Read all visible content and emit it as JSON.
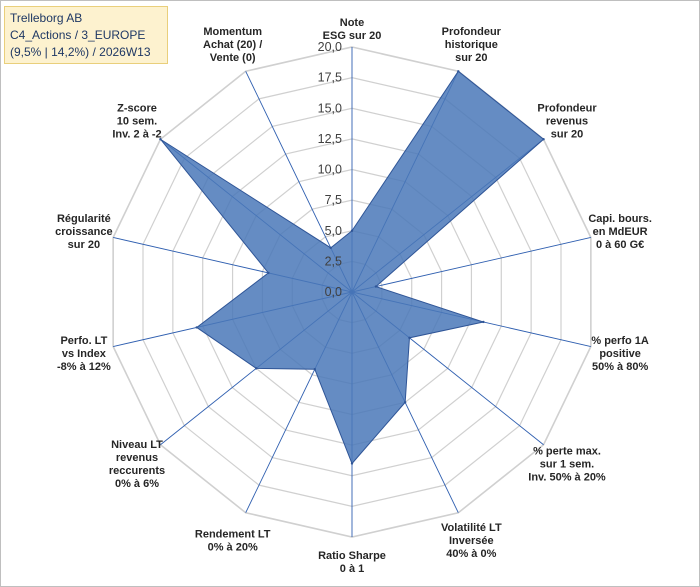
{
  "header": {
    "line1": "Trelleborg AB",
    "line2": "C4_Actions / 3_EUROPE",
    "line3": "(9,5% | 14,2%) / 2026W13"
  },
  "chart_data": {
    "type": "radar",
    "rmin": 0,
    "rmax": 20,
    "step": 2.5,
    "tick_labels": [
      "0,0",
      "2,5",
      "5,0",
      "7,5",
      "10,0",
      "12,5",
      "15,0",
      "17,5",
      "20,0"
    ],
    "grid": true,
    "fill_color": "#4a78b8",
    "line_color": "#2f5597",
    "axes": [
      {
        "label": [
          "Note",
          "ESG sur 20"
        ],
        "value": 5
      },
      {
        "label": [
          "Profondeur",
          "historique",
          "sur 20"
        ],
        "value": 20
      },
      {
        "label": [
          "Profondeur",
          "revenus",
          "sur 20"
        ],
        "value": 20
      },
      {
        "label": [
          "Capi. bours.",
          "en MdEUR",
          "0 à 60 G€"
        ],
        "value": 2
      },
      {
        "label": [
          "% perfo 1A",
          "positive",
          "50% à 80%"
        ],
        "value": 11
      },
      {
        "label": [
          "% perte max.",
          "sur 1 sem.",
          "Inv. 50% à 20%"
        ],
        "value": 6
      },
      {
        "label": [
          "Volatilité LT",
          "Inversée",
          "40% à 0%"
        ],
        "value": 10
      },
      {
        "label": [
          "Ratio Sharpe",
          "0 à 1"
        ],
        "value": 14
      },
      {
        "label": [
          "Rendement LT",
          "0% à 20%"
        ],
        "value": 7
      },
      {
        "label": [
          "Niveau LT",
          "revenus",
          "reccurents",
          "0% à 6%"
        ],
        "value": 10
      },
      {
        "label": [
          "Perfo. LT",
          "vs Index",
          "-8% à 12%"
        ],
        "value": 13
      },
      {
        "label": [
          "Régularité",
          "croissance",
          "sur 20"
        ],
        "value": 7
      },
      {
        "label": [
          "Z-score",
          "10 sem.",
          "Inv. 2 à -2"
        ],
        "value": 20
      },
      {
        "label": [
          "Momentum",
          "Achat (20) /",
          "Vente (0)"
        ],
        "value": 4
      }
    ]
  }
}
